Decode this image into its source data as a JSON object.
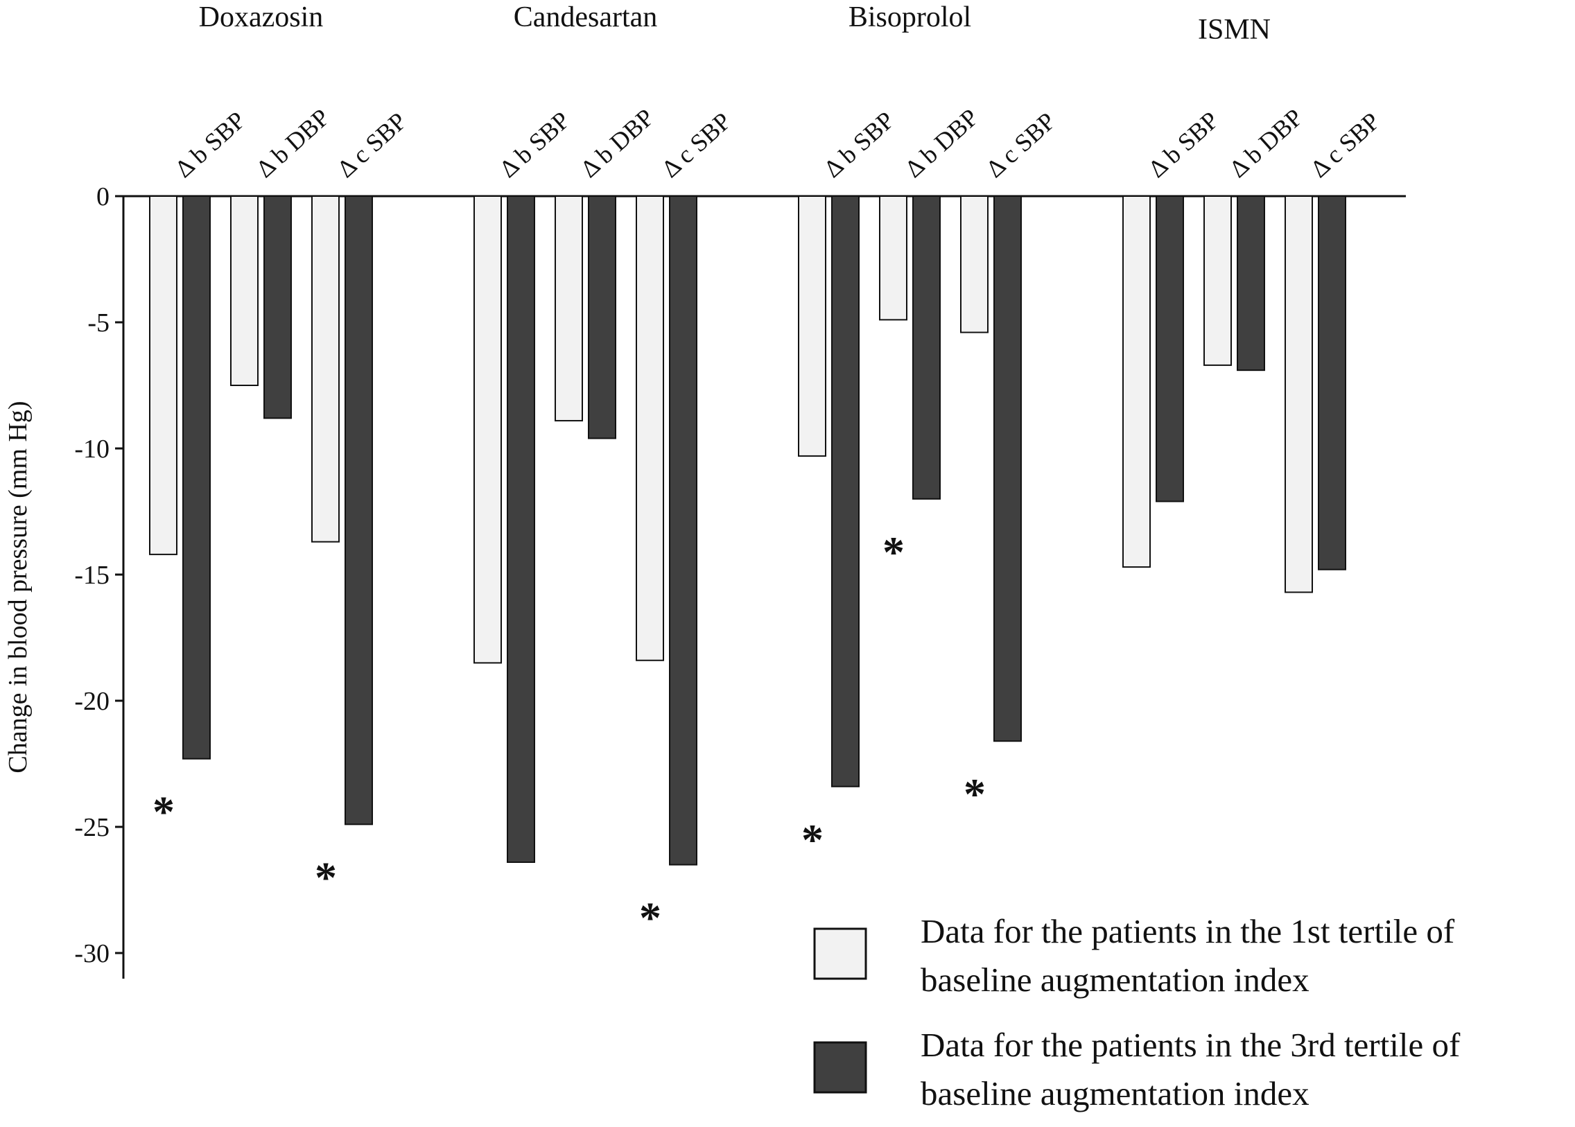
{
  "chart_data": {
    "type": "bar",
    "ylabel": "Change in blood pressure (mm Hg)",
    "ylim": [
      -30,
      0
    ],
    "yticks": [
      0,
      -5,
      -10,
      -15,
      -20,
      -25,
      -30
    ],
    "grid": false,
    "legend_position": "bottom-right",
    "colors": {
      "first": "#f2f2f2",
      "third": "#404040",
      "outline": "#111111"
    },
    "series": [
      {
        "name": "Data for the patients in the 1st tertile of baseline augmentation index",
        "key": "first"
      },
      {
        "name": "Data for the patients in the 3rd tertile of baseline augmentation index",
        "key": "third"
      }
    ],
    "groups": [
      {
        "name": "Doxazosin",
        "bars": [
          {
            "label": "Δ b SBP",
            "values": [
              -14.2,
              -22.3
            ],
            "significant": true
          },
          {
            "label": "Δ b DBP",
            "values": [
              -7.5,
              -8.8
            ],
            "significant": false
          },
          {
            "label": "Δ c SBP",
            "values": [
              -13.7,
              -24.9
            ],
            "significant": true
          }
        ]
      },
      {
        "name": "Candesartan",
        "bars": [
          {
            "label": "Δ b SBP",
            "values": [
              -18.5,
              -26.4
            ],
            "significant": false
          },
          {
            "label": "Δ b DBP",
            "values": [
              -8.9,
              -9.6
            ],
            "significant": false
          },
          {
            "label": "Δ c SBP",
            "values": [
              -18.4,
              -26.5
            ],
            "significant": true
          }
        ]
      },
      {
        "name": "Bisoprolol",
        "bars": [
          {
            "label": "Δ b SBP",
            "values": [
              -10.3,
              -23.4
            ],
            "significant": true
          },
          {
            "label": "Δ b DBP",
            "values": [
              -4.9,
              -12.0
            ],
            "significant": true
          },
          {
            "label": "Δ c SBP",
            "values": [
              -5.4,
              -21.6
            ],
            "significant": true
          }
        ]
      },
      {
        "name": "ISMN",
        "bars": [
          {
            "label": "Δ b SBP",
            "values": [
              -14.7,
              -12.1
            ],
            "significant": false
          },
          {
            "label": "Δ b DBP",
            "values": [
              -6.7,
              -6.9
            ],
            "significant": false
          },
          {
            "label": "Δ c SBP",
            "values": [
              -15.7,
              -14.8
            ],
            "significant": false
          }
        ]
      }
    ],
    "significance_marker": "*",
    "legend": [
      {
        "key": "first",
        "lines": [
          "Data for the patients in the 1st tertile of",
          "baseline augmentation index"
        ]
      },
      {
        "key": "third",
        "lines": [
          "Data for the patients in the 3rd tertile of",
          "baseline augmentation index"
        ]
      }
    ]
  }
}
